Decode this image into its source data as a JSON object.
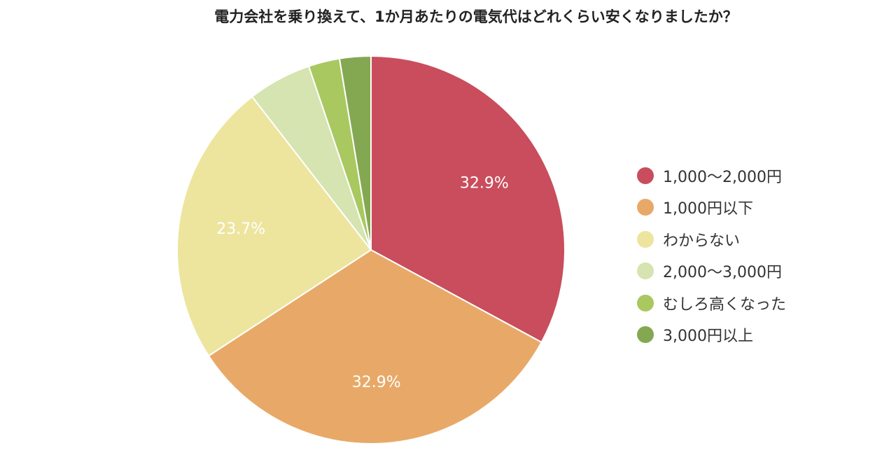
{
  "chart_data": {
    "type": "pie",
    "title": "電力会社を乗り換えて、1か月あたりの電気代はどれくらい安くなりましたか？",
    "categories": [
      "1,000〜2,000円",
      "1,000円以下",
      "わからない",
      "2,000〜3,000円",
      "むしろ高くなった",
      "3,000円以上"
    ],
    "values": [
      32.9,
      32.9,
      23.7,
      5.3,
      2.6,
      2.6
    ],
    "data_labels": [
      "32.9%",
      "32.9%",
      "23.7%",
      "",
      "",
      ""
    ],
    "colors": [
      "#c94d5c",
      "#e8a968",
      "#ede59e",
      "#d5e4b0",
      "#a9c860",
      "#84a852"
    ],
    "legend_position": "right"
  }
}
